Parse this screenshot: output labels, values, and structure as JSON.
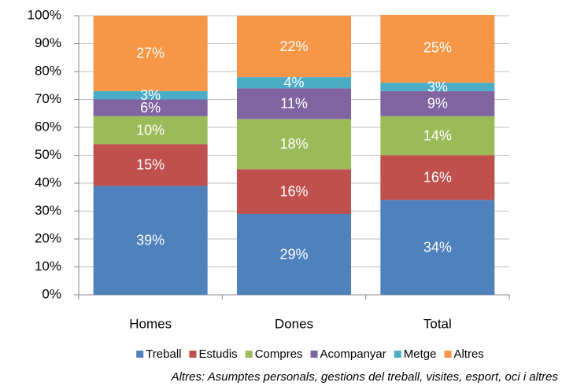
{
  "chart_data": {
    "type": "stacked_bar",
    "categories": [
      "Homes",
      "Dones",
      "Total"
    ],
    "series": [
      {
        "name": "Treball",
        "color": "#4f81bd",
        "values": [
          39,
          29,
          34
        ],
        "value_labels": [
          "39%",
          "29%",
          "34%"
        ]
      },
      {
        "name": "Estudis",
        "color": "#c0504d",
        "values": [
          15,
          16,
          16
        ],
        "value_labels": [
          "15%",
          "16%",
          "16%"
        ]
      },
      {
        "name": "Compres",
        "color": "#9bbb59",
        "values": [
          10,
          18,
          14
        ],
        "value_labels": [
          "10%",
          "18%",
          "14%"
        ]
      },
      {
        "name": "Acompanyar",
        "color": "#8064a2",
        "values": [
          6,
          11,
          9
        ],
        "value_labels": [
          "6%",
          "11%",
          "9%"
        ]
      },
      {
        "name": "Metge",
        "color": "#4bacc6",
        "values": [
          3,
          4,
          3
        ],
        "value_labels": [
          "3%",
          "4%",
          "3%"
        ]
      },
      {
        "name": "Altres",
        "color": "#f79646",
        "values": [
          27,
          22,
          25
        ],
        "value_labels": [
          "27%",
          "22%",
          "25%"
        ]
      }
    ],
    "ylim": [
      0,
      100
    ],
    "yticks": [
      {
        "value": 0,
        "label": "0%"
      },
      {
        "value": 10,
        "label": "10%"
      },
      {
        "value": 20,
        "label": "20%"
      },
      {
        "value": 30,
        "label": "30%"
      },
      {
        "value": 40,
        "label": "40%"
      },
      {
        "value": 50,
        "label": "50%"
      },
      {
        "value": 60,
        "label": "60%"
      },
      {
        "value": 70,
        "label": "70%"
      },
      {
        "value": 80,
        "label": "80%"
      },
      {
        "value": 90,
        "label": "90%"
      },
      {
        "value": 100,
        "label": "100%"
      }
    ],
    "grid": true,
    "legend": "bottom",
    "annotation": "Altres: Asumptes personals, gestions del treball, visites, esport, oci i altres"
  }
}
